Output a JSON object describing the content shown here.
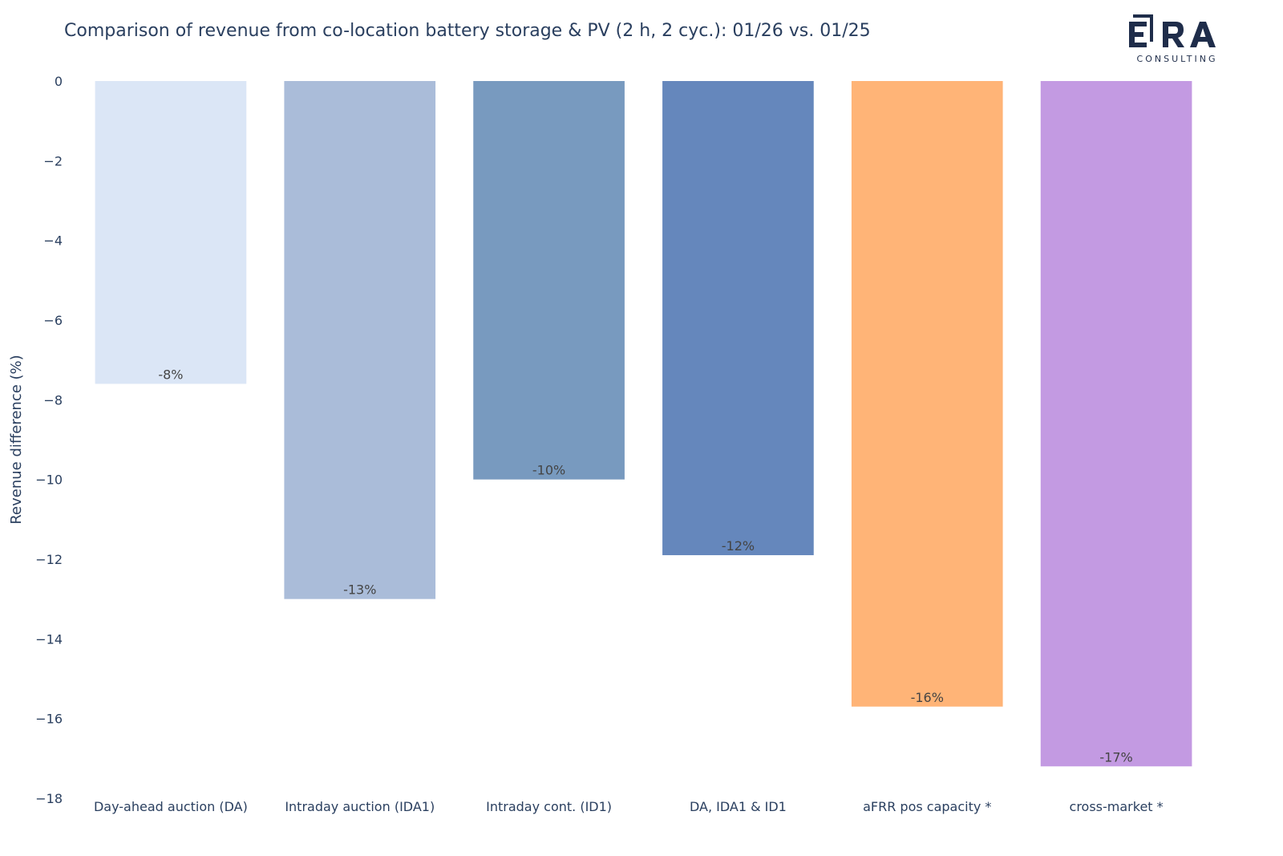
{
  "chart_data": {
    "type": "bar",
    "title": "Comparison of revenue from co-location battery storage & PV (2 h, 2 cyc.): 01/26 vs. 01/25",
    "xlabel": "",
    "ylabel": "Revenue difference (%)",
    "ylim": [
      -18,
      0
    ],
    "yticks": [
      0,
      -2,
      -4,
      -6,
      -8,
      -10,
      -12,
      -14,
      -16,
      -18
    ],
    "ytick_labels": [
      "0",
      "−2",
      "−4",
      "−6",
      "−8",
      "−10",
      "−12",
      "−14",
      "−16",
      "−18"
    ],
    "categories": [
      "Day-ahead auction (DA)",
      "Intraday auction (IDA1)",
      "Intraday cont. (ID1)",
      "DA, IDA1 & ID1",
      "aFRR pos capacity *",
      "cross-market *"
    ],
    "values": [
      -7.6,
      -13.0,
      -10.0,
      -11.9,
      -15.7,
      -17.2
    ],
    "data_labels": [
      "-8%",
      "-13%",
      "-10%",
      "-12%",
      "-16%",
      "-17%"
    ],
    "colors": [
      "#dbe6f6",
      "#aabcd9",
      "#789abf",
      "#6587bc",
      "#ffb477",
      "#c39ae2"
    ],
    "grid": false,
    "legend": "none"
  },
  "logo": {
    "text": "ERA",
    "subtext": "CONSULTING",
    "color": "#1f2d4a"
  }
}
